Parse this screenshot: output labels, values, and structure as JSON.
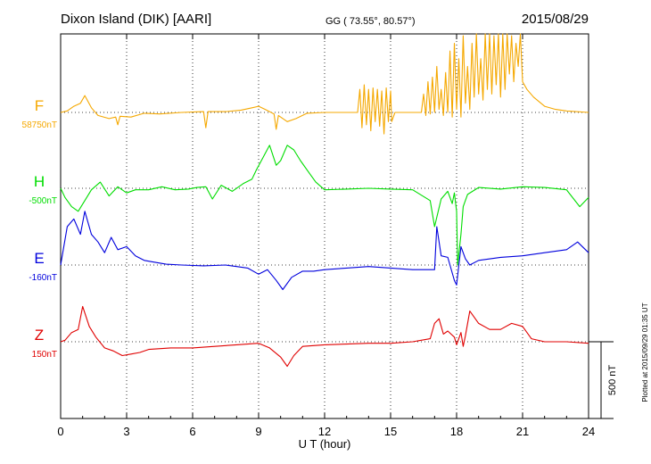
{
  "header": {
    "station": "Dixon Island (DIK)  [AARI]",
    "coords": "GG ( 73.55°,  80.57°)",
    "date": "2015/08/29"
  },
  "side_note": "Plotted at 2015/09/29 01:35 UT",
  "chart_data": {
    "type": "line",
    "title": "Dixon Island (DIK)  [AARI]",
    "xlabel": "U T (hour)",
    "xlim": [
      0,
      24
    ],
    "xticks": [
      "0",
      "3",
      "6",
      "9",
      "12",
      "15",
      "18",
      "21",
      "24"
    ],
    "scale_bar": {
      "label": "500 nT",
      "value_nT": 500
    },
    "grid": "dotted vertical every 3 hours; dotted baseline per component",
    "colors": {
      "F": "#f5a800",
      "H": "#00dd00",
      "E": "#0000dd",
      "Z": "#e00000"
    },
    "series": [
      {
        "name": "F",
        "baseline_label": "58750nT",
        "unit": "nT",
        "points": [
          [
            0,
            0
          ],
          [
            0.3,
            10
          ],
          [
            0.6,
            40
          ],
          [
            0.9,
            60
          ],
          [
            1.1,
            110
          ],
          [
            1.4,
            30
          ],
          [
            1.7,
            -20
          ],
          [
            2.2,
            -40
          ],
          [
            2.5,
            -30
          ],
          [
            2.6,
            -80
          ],
          [
            2.7,
            -25
          ],
          [
            3.2,
            -30
          ],
          [
            3.8,
            -5
          ],
          [
            4.5,
            -10
          ],
          [
            5.5,
            0
          ],
          [
            6.5,
            5
          ],
          [
            6.6,
            -100
          ],
          [
            6.7,
            5
          ],
          [
            7.5,
            5
          ],
          [
            8.2,
            15
          ],
          [
            8.7,
            30
          ],
          [
            9.0,
            40
          ],
          [
            9.3,
            20
          ],
          [
            9.7,
            -10
          ],
          [
            9.8,
            -110
          ],
          [
            9.9,
            -20
          ],
          [
            10.3,
            -60
          ],
          [
            10.7,
            -40
          ],
          [
            11.2,
            -5
          ],
          [
            12,
            0
          ],
          [
            13.5,
            0
          ],
          [
            13.6,
            150
          ],
          [
            13.7,
            -100
          ],
          [
            13.8,
            180
          ],
          [
            13.9,
            -80
          ],
          [
            14.0,
            150
          ],
          [
            14.1,
            -120
          ],
          [
            14.2,
            160
          ],
          [
            14.3,
            -60
          ],
          [
            14.4,
            150
          ],
          [
            14.5,
            -90
          ],
          [
            14.6,
            140
          ],
          [
            14.7,
            -140
          ],
          [
            14.8,
            160
          ],
          [
            14.9,
            -60
          ],
          [
            15.0,
            140
          ],
          [
            15.05,
            -60
          ],
          [
            15.2,
            0
          ],
          [
            16.0,
            0
          ],
          [
            16.4,
            0
          ],
          [
            16.5,
            120
          ],
          [
            16.6,
            -20
          ],
          [
            16.7,
            200
          ],
          [
            16.8,
            -10
          ],
          [
            16.9,
            230
          ],
          [
            17.0,
            0
          ],
          [
            17.1,
            300
          ],
          [
            17.2,
            20
          ],
          [
            17.3,
            150
          ],
          [
            17.4,
            -20
          ],
          [
            17.5,
            260
          ],
          [
            17.6,
            0
          ],
          [
            17.7,
            400
          ],
          [
            17.8,
            -30
          ],
          [
            17.9,
            450
          ],
          [
            18.0,
            20
          ],
          [
            18.1,
            350
          ],
          [
            18.2,
            -30
          ],
          [
            18.3,
            500
          ],
          [
            18.4,
            60
          ],
          [
            18.5,
            300
          ],
          [
            18.6,
            20
          ],
          [
            18.7,
            450
          ],
          [
            18.8,
            100
          ],
          [
            18.9,
            600
          ],
          [
            19.0,
            120
          ],
          [
            19.1,
            350
          ],
          [
            19.2,
            80
          ],
          [
            19.3,
            550
          ],
          [
            19.4,
            150
          ],
          [
            19.5,
            650
          ],
          [
            19.6,
            120
          ],
          [
            19.7,
            500
          ],
          [
            19.8,
            180
          ],
          [
            19.9,
            600
          ],
          [
            20.0,
            100
          ],
          [
            20.1,
            550
          ],
          [
            20.2,
            150
          ],
          [
            20.3,
            650
          ],
          [
            20.4,
            250
          ],
          [
            20.5,
            500
          ],
          [
            20.6,
            200
          ],
          [
            20.7,
            450
          ],
          [
            20.8,
            300
          ],
          [
            20.9,
            600
          ],
          [
            21.0,
            200
          ],
          [
            21.2,
            150
          ],
          [
            21.5,
            100
          ],
          [
            22.0,
            40
          ],
          [
            22.5,
            20
          ],
          [
            23.0,
            10
          ],
          [
            24,
            0
          ]
        ]
      },
      {
        "name": "H",
        "baseline_label": "-500nT",
        "unit": "nT",
        "points": [
          [
            0,
            0
          ],
          [
            0.2,
            -60
          ],
          [
            0.5,
            -120
          ],
          [
            0.8,
            -150
          ],
          [
            1.1,
            -80
          ],
          [
            1.4,
            -10
          ],
          [
            1.8,
            40
          ],
          [
            2.2,
            -50
          ],
          [
            2.6,
            10
          ],
          [
            3.0,
            -30
          ],
          [
            3.4,
            -10
          ],
          [
            4.0,
            -10
          ],
          [
            4.6,
            10
          ],
          [
            5.2,
            -10
          ],
          [
            5.8,
            -5
          ],
          [
            6.2,
            5
          ],
          [
            6.6,
            10
          ],
          [
            6.9,
            -70
          ],
          [
            7.3,
            20
          ],
          [
            7.8,
            -20
          ],
          [
            8.3,
            30
          ],
          [
            8.7,
            60
          ],
          [
            8.9,
            120
          ],
          [
            9.2,
            200
          ],
          [
            9.5,
            280
          ],
          [
            9.8,
            150
          ],
          [
            10.0,
            180
          ],
          [
            10.3,
            280
          ],
          [
            10.6,
            250
          ],
          [
            10.9,
            180
          ],
          [
            11.3,
            100
          ],
          [
            11.6,
            40
          ],
          [
            12.0,
            -10
          ],
          [
            13,
            -5
          ],
          [
            14,
            0
          ],
          [
            15,
            -5
          ],
          [
            16,
            -10
          ],
          [
            16.8,
            -80
          ],
          [
            17.0,
            -250
          ],
          [
            17.3,
            -70
          ],
          [
            17.6,
            -20
          ],
          [
            17.8,
            -100
          ],
          [
            17.9,
            -30
          ],
          [
            18.0,
            -150
          ],
          [
            18.05,
            -500
          ],
          [
            18.2,
            -300
          ],
          [
            18.3,
            -120
          ],
          [
            18.5,
            -40
          ],
          [
            19,
            5
          ],
          [
            20,
            -5
          ],
          [
            21,
            10
          ],
          [
            22,
            5
          ],
          [
            23,
            -10
          ],
          [
            23.6,
            -120
          ],
          [
            24,
            -60
          ]
        ]
      },
      {
        "name": "E",
        "baseline_label": "-160nT",
        "unit": "nT",
        "points": [
          [
            0,
            0
          ],
          [
            0.3,
            250
          ],
          [
            0.6,
            300
          ],
          [
            0.9,
            200
          ],
          [
            1.1,
            350
          ],
          [
            1.4,
            200
          ],
          [
            1.7,
            150
          ],
          [
            2.0,
            80
          ],
          [
            2.3,
            180
          ],
          [
            2.6,
            100
          ],
          [
            3.0,
            120
          ],
          [
            3.4,
            60
          ],
          [
            3.8,
            30
          ],
          [
            4.2,
            20
          ],
          [
            4.8,
            5
          ],
          [
            5.5,
            0
          ],
          [
            6.5,
            -5
          ],
          [
            7.5,
            0
          ],
          [
            8.0,
            -10
          ],
          [
            8.5,
            -20
          ],
          [
            9.0,
            -60
          ],
          [
            9.4,
            -30
          ],
          [
            9.8,
            -100
          ],
          [
            10.1,
            -160
          ],
          [
            10.5,
            -80
          ],
          [
            11.0,
            -40
          ],
          [
            11.5,
            -40
          ],
          [
            12,
            -30
          ],
          [
            13,
            -20
          ],
          [
            14,
            -10
          ],
          [
            15,
            -20
          ],
          [
            16,
            -30
          ],
          [
            16.8,
            -30
          ],
          [
            17.0,
            -30
          ],
          [
            17.1,
            250
          ],
          [
            17.3,
            60
          ],
          [
            17.6,
            50
          ],
          [
            17.9,
            -100
          ],
          [
            18.0,
            -130
          ],
          [
            18.2,
            120
          ],
          [
            18.4,
            40
          ],
          [
            18.6,
            0
          ],
          [
            19,
            30
          ],
          [
            20,
            50
          ],
          [
            21,
            60
          ],
          [
            22,
            80
          ],
          [
            23,
            100
          ],
          [
            23.5,
            150
          ],
          [
            24,
            80
          ]
        ]
      },
      {
        "name": "Z",
        "baseline_label": "150nT",
        "unit": "nT",
        "points": [
          [
            0,
            0
          ],
          [
            0.2,
            10
          ],
          [
            0.5,
            60
          ],
          [
            0.8,
            80
          ],
          [
            1.0,
            230
          ],
          [
            1.3,
            100
          ],
          [
            1.6,
            30
          ],
          [
            2.0,
            -40
          ],
          [
            2.4,
            -60
          ],
          [
            2.8,
            -90
          ],
          [
            3.2,
            -80
          ],
          [
            3.6,
            -70
          ],
          [
            4.0,
            -50
          ],
          [
            5,
            -40
          ],
          [
            6,
            -40
          ],
          [
            7,
            -30
          ],
          [
            8,
            -20
          ],
          [
            9,
            -10
          ],
          [
            9.5,
            -40
          ],
          [
            10.0,
            -100
          ],
          [
            10.3,
            -160
          ],
          [
            10.6,
            -90
          ],
          [
            11.0,
            -30
          ],
          [
            12,
            -20
          ],
          [
            13,
            -15
          ],
          [
            14,
            -10
          ],
          [
            15,
            -10
          ],
          [
            16,
            0
          ],
          [
            16.8,
            20
          ],
          [
            17.0,
            120
          ],
          [
            17.2,
            150
          ],
          [
            17.4,
            50
          ],
          [
            17.6,
            70
          ],
          [
            17.9,
            30
          ],
          [
            18.0,
            -20
          ],
          [
            18.2,
            60
          ],
          [
            18.3,
            -30
          ],
          [
            18.4,
            40
          ],
          [
            18.6,
            200
          ],
          [
            19.0,
            120
          ],
          [
            19.5,
            80
          ],
          [
            20,
            80
          ],
          [
            20.5,
            120
          ],
          [
            21,
            100
          ],
          [
            21.4,
            20
          ],
          [
            22,
            0
          ],
          [
            23,
            0
          ],
          [
            24,
            -10
          ]
        ]
      }
    ]
  }
}
